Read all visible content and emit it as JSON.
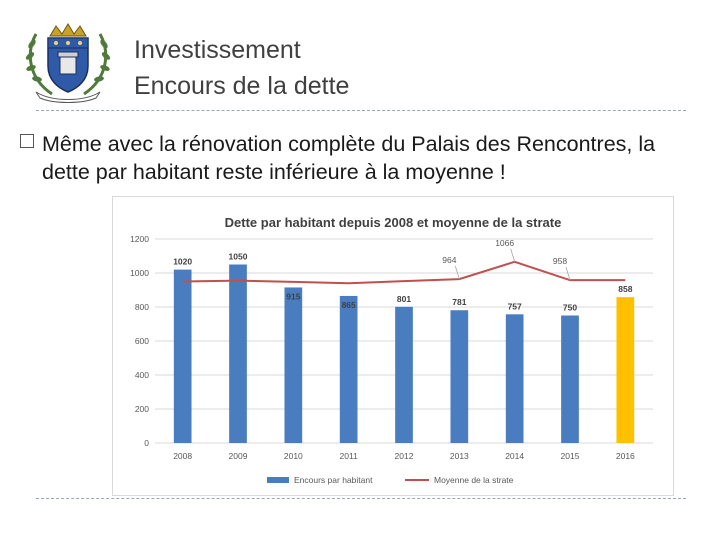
{
  "slide": {
    "title": "Investissement",
    "subtitle": "Encours de la dette",
    "bullet": "Même avec la rénovation complète du Palais des Rencontres, la dette par habitant reste inférieure à la moyenne !"
  },
  "crest": {
    "icon": "coat-of-arms-icon",
    "colors": {
      "shield_blue": "#2e5aa8",
      "laurel_green": "#4f7a3a",
      "gold": "#c9a227"
    }
  },
  "colors": {
    "bar": "#4a7dc0",
    "bar_highlight": "#ffc000",
    "line": "#c0504d",
    "grid": "#d9d9d9",
    "text": "#404040",
    "title_text": "#404040"
  },
  "chart_data": {
    "type": "bar",
    "title": "Dette par habitant depuis 2008 et moyenne de la strate",
    "categories": [
      "2008",
      "2009",
      "2010",
      "2011",
      "2012",
      "2013",
      "2014",
      "2015",
      "2016"
    ],
    "series": [
      {
        "name": "Encours par habitant",
        "type": "bar",
        "values": [
          1020,
          1050,
          915,
          865,
          801,
          781,
          757,
          750,
          858
        ],
        "highlight_index": 8
      },
      {
        "name": "Moyenne de la strate",
        "type": "line",
        "values": [
          950,
          955,
          948,
          940,
          952,
          964,
          1066,
          958,
          958
        ]
      }
    ],
    "bar_labels": [
      "1020",
      "1050",
      "915",
      "865",
      "801",
      "781",
      "757",
      "750",
      "858"
    ],
    "line_labels": [
      {
        "index": 5,
        "text": "964"
      },
      {
        "index": 6,
        "text": "1066"
      },
      {
        "index": 7,
        "text": "958"
      }
    ],
    "yticks": [
      0,
      200,
      400,
      600,
      800,
      1000,
      1200
    ],
    "ylim": [
      0,
      1200
    ],
    "xlabel": "",
    "ylabel": "",
    "grid": true,
    "legend_position": "bottom"
  }
}
